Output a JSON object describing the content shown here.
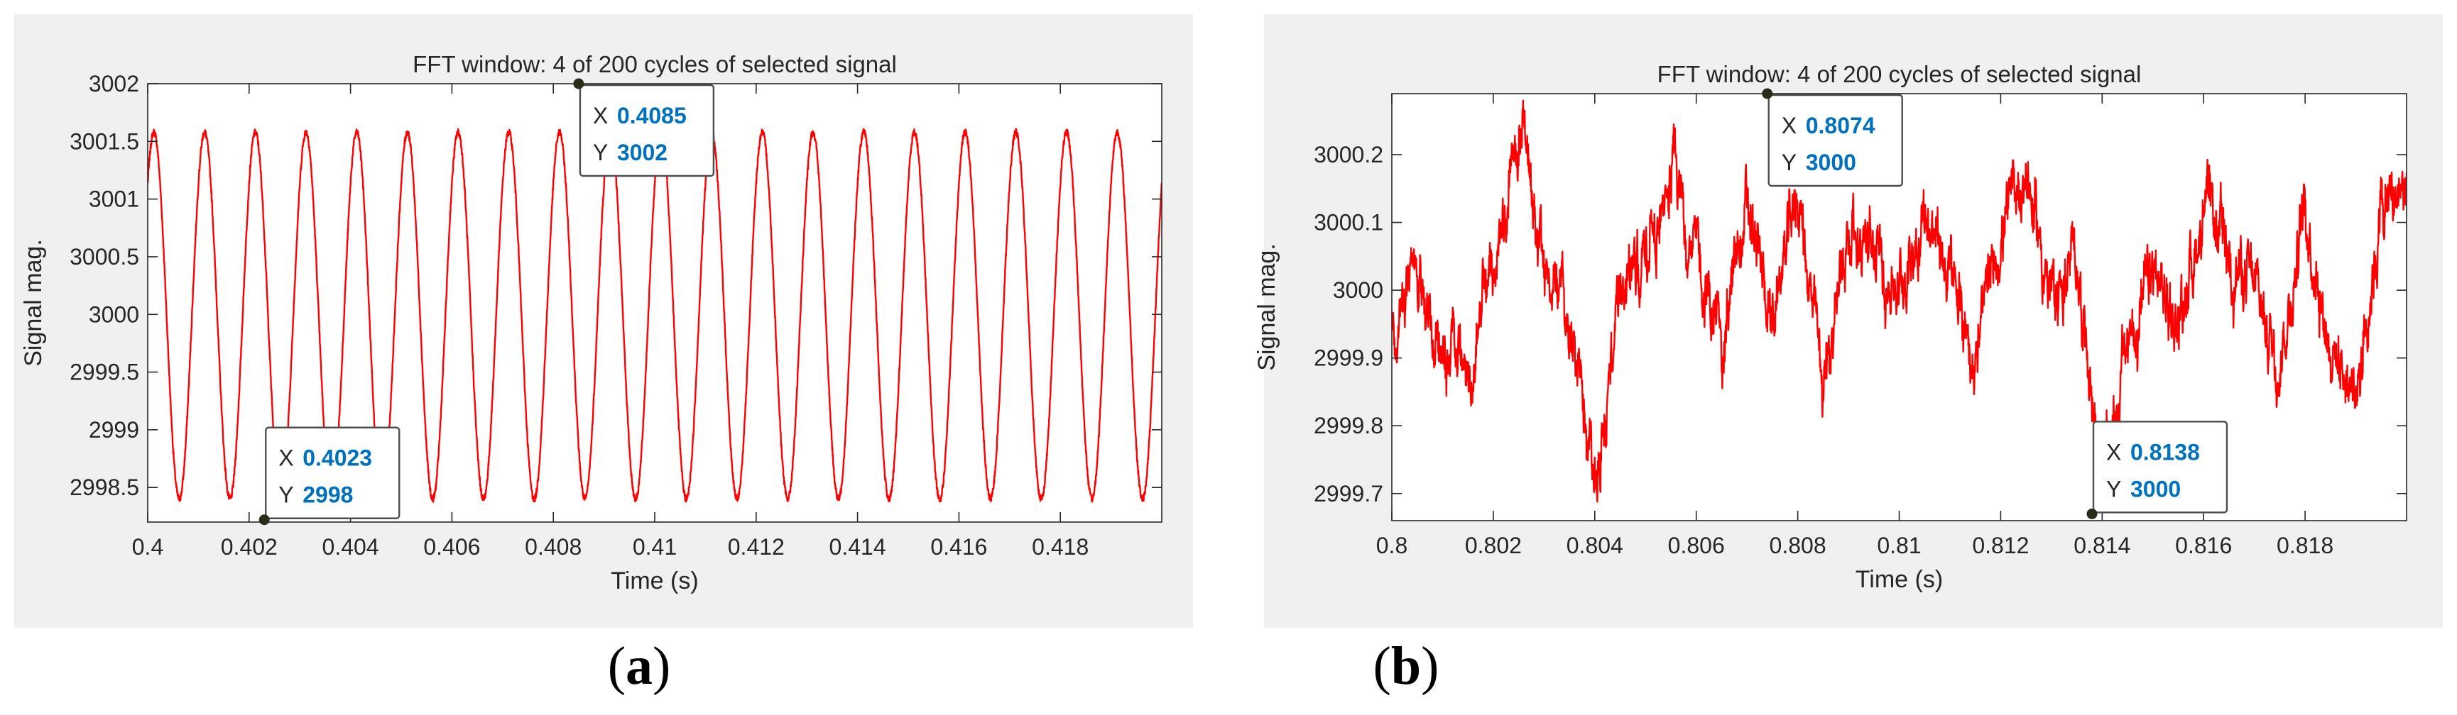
{
  "figure": {
    "panels": [
      {
        "caption_label": "a"
      },
      {
        "caption_label": "b"
      }
    ]
  },
  "colors": {
    "figure_background": "#f0f0f0",
    "axes_background": "#ffffff",
    "trace": "#ff0000",
    "datatip_value": "#0072bd",
    "text": "#262626"
  },
  "chart_data": [
    {
      "type": "line",
      "title": "FFT window: 4 of 200 cycles of selected signal",
      "xlabel": "Time (s)",
      "ylabel": "Signal mag.",
      "xlim": [
        0.4,
        0.42
      ],
      "ylim": [
        2998.2,
        3002
      ],
      "xticks": [
        0.4,
        0.402,
        0.404,
        0.406,
        0.408,
        0.41,
        0.412,
        0.414,
        0.416,
        0.418
      ],
      "xtick_labels": [
        "0.4",
        "0.402",
        "0.404",
        "0.406",
        "0.408",
        "0.41",
        "0.412",
        "0.414",
        "0.416",
        "0.418"
      ],
      "yticks": [
        3002,
        3001.5,
        3001,
        3000.5,
        3000,
        2999.5,
        2999,
        2998.5
      ],
      "ytick_labels": [
        "3002",
        "3001.5",
        "3001",
        "3000.5",
        "3000",
        "2999.5",
        "2999",
        "2998.5"
      ],
      "grid": false,
      "series": [
        {
          "signal": "sinusoid",
          "frequency_hz": 1000,
          "mean": 3000,
          "amplitude": 1.45,
          "phase_rad": 0.8,
          "peaks": [
            3001.62,
            3001.35,
            3001.5,
            3001.35,
            3001.28,
            3001.55,
            3001.4,
            3001.45,
            3001.8,
            3002.0,
            3001.35,
            3001.55,
            3001.3,
            3001.65,
            3001.58,
            3001.55,
            3001.48,
            3001.32,
            3001.38,
            3001.6,
            3001.58
          ],
          "troughs": [
            2998.6,
            2998.3,
            2998.22,
            2998.4,
            2998.45,
            2998.3,
            2998.25,
            2998.45,
            2998.35,
            2998.28,
            2998.4,
            2998.5,
            2998.35,
            2998.3,
            2998.4,
            2998.3,
            2998.25,
            2998.32,
            2998.35,
            2998.3,
            2998.4
          ]
        }
      ],
      "datatips": [
        {
          "x_label": "X",
          "x": "0.4023",
          "y_label": "Y",
          "y": "2998",
          "anchor_x": 0.4023,
          "anchor_y": 2998.22
        },
        {
          "x_label": "X",
          "x": "0.4085",
          "y_label": "Y",
          "y": "3002",
          "anchor_x": 0.4085,
          "anchor_y": 3002.0
        }
      ]
    },
    {
      "type": "line",
      "title": "FFT window: 4 of 200 cycles of selected signal",
      "xlabel": "Time (s)",
      "ylabel": "Signal mag.",
      "xlim": [
        0.8,
        0.82
      ],
      "ylim": [
        2999.66,
        3000.29
      ],
      "xticks": [
        0.8,
        0.802,
        0.804,
        0.806,
        0.808,
        0.81,
        0.812,
        0.814,
        0.816,
        0.818
      ],
      "xtick_labels": [
        "0.8",
        "0.802",
        "0.804",
        "0.806",
        "0.808",
        "0.81",
        "0.812",
        "0.814",
        "0.816",
        "0.818"
      ],
      "yticks": [
        3000.2,
        3000.1,
        3000,
        2999.9,
        2999.8,
        2999.7
      ],
      "ytick_labels": [
        "3000.2",
        "3000.1",
        "3000",
        "2999.9",
        "2999.8",
        "2999.7"
      ],
      "grid": false,
      "series": [
        {
          "signal": "noise",
          "x": [
            0.8,
            0.8005,
            0.801,
            0.8015,
            0.802,
            0.8025,
            0.803,
            0.8035,
            0.804,
            0.8045,
            0.805,
            0.8055,
            0.806,
            0.8065,
            0.807,
            0.8075,
            0.808,
            0.8085,
            0.809,
            0.8095,
            0.81,
            0.8105,
            0.811,
            0.8115,
            0.812,
            0.8125,
            0.813,
            0.8135,
            0.814,
            0.8145,
            0.815,
            0.8155,
            0.816,
            0.8165,
            0.817,
            0.8175,
            0.818,
            0.8185,
            0.819,
            0.8195,
            0.82
          ],
          "y": [
            2999.95,
            3000.02,
            2999.9,
            2999.88,
            3000.05,
            3000.22,
            3000.05,
            2999.95,
            2999.72,
            2999.98,
            3000.05,
            3000.18,
            3000.05,
            2999.92,
            3000.12,
            2999.95,
            3000.15,
            2999.85,
            3000.1,
            3000.05,
            3000.0,
            3000.12,
            3000.02,
            2999.9,
            3000.08,
            3000.18,
            2999.98,
            3000.05,
            2999.72,
            2999.92,
            3000.02,
            2999.95,
            3000.12,
            3000.05,
            3000.0,
            2999.9,
            3000.12,
            2999.92,
            2999.85,
            3000.12,
            3000.15
          ]
        }
      ],
      "datatips": [
        {
          "x_label": "X",
          "x": "0.8074",
          "y_label": "Y",
          "y": "3000",
          "anchor_x": 0.8074,
          "anchor_y": 3000.29
        },
        {
          "x_label": "X",
          "x": "0.8138",
          "y_label": "Y",
          "y": "3000",
          "anchor_x": 0.8138,
          "anchor_y": 2999.67
        }
      ]
    }
  ]
}
